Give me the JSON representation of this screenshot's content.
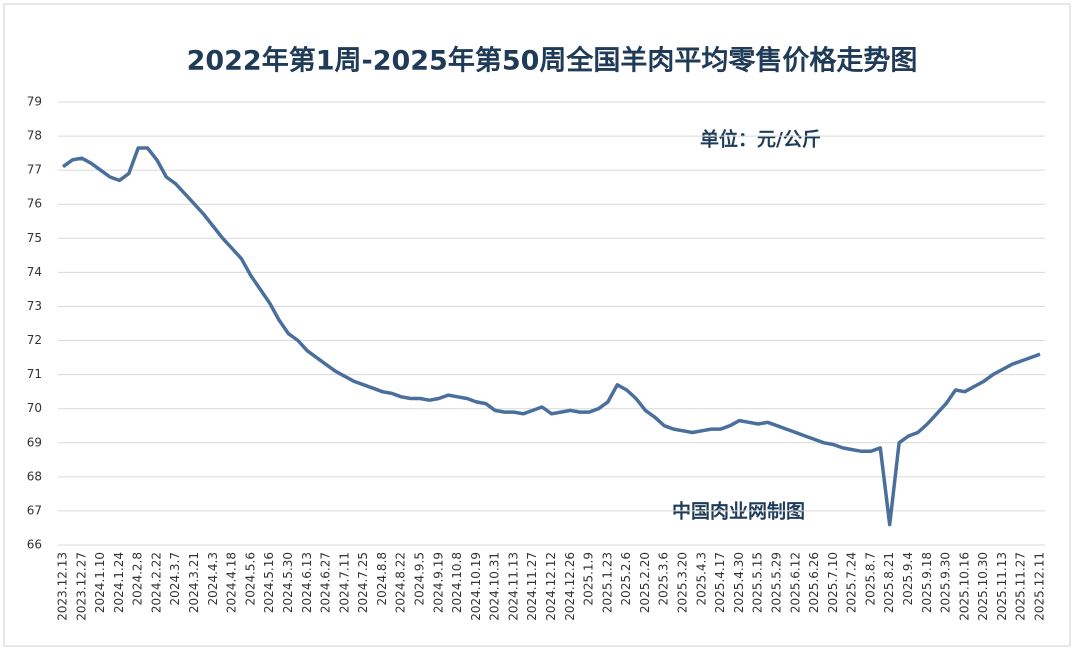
{
  "chart_data": {
    "type": "line",
    "title": "2022年第1周-2025年第50周全国羊肉平均零售价格走势图",
    "annotations": [
      "单位：元/公斤",
      "中国肉业网制图"
    ],
    "categories": [
      "2023.12.13",
      null,
      "2023.12.27",
      null,
      "2024.1.10",
      null,
      "2024.1.24",
      null,
      "2024.2.8",
      null,
      "2024.2.22",
      null,
      "2024.3.7",
      null,
      "2024.3.21",
      null,
      "2024.4.3",
      null,
      "2024.4.18",
      null,
      "2024.5.6",
      null,
      "2024.5.16",
      null,
      "2024.5.30",
      null,
      "2024.6.13",
      null,
      "2024.6.27",
      null,
      "2024.7.11",
      null,
      "2024.7.25",
      null,
      "2024.8.8",
      null,
      "2024.8.22",
      null,
      "2024.9.5",
      null,
      "2024.9.19",
      null,
      "2024.10.8",
      null,
      "2024.10.19",
      null,
      "2024.10.31",
      null,
      "2024.11.13",
      null,
      "2024.11.27",
      null,
      "2024.12.12",
      null,
      "2024.12.26",
      null,
      "2025.1.9",
      null,
      "2025.1.23",
      null,
      "2025.2.6",
      null,
      "2025.2.20",
      null,
      "2025.3.6",
      null,
      "2025.3.20",
      null,
      "2025.4.3",
      null,
      "2025.4.17",
      null,
      "2025.4.30",
      null,
      "2025.5.15",
      null,
      "2025.5.29",
      null,
      "2025.6.12",
      null,
      "2025.6.26",
      null,
      "2025.7.10",
      null,
      "2025.7.24",
      null,
      "2025.8.7",
      null,
      "2025.8.21",
      null,
      "2025.9.4",
      null,
      "2025.9.18",
      null,
      "2025.9.30",
      null,
      "2025.10.16",
      null,
      "2025.10.30",
      null,
      "2025.11.13",
      null,
      "2025.11.27",
      null,
      "2025.12.11"
    ],
    "series": [
      {
        "name": "全国羊肉平均零售价格",
        "color": "#4a6f9c",
        "values": [
          77.1,
          77.3,
          77.35,
          77.2,
          77.0,
          76.8,
          76.7,
          76.9,
          77.65,
          77.65,
          77.3,
          76.8,
          76.6,
          76.3,
          76.0,
          75.7,
          75.35,
          75.0,
          74.7,
          74.4,
          73.9,
          73.5,
          73.1,
          72.6,
          72.2,
          72.0,
          71.7,
          71.5,
          71.3,
          71.1,
          70.95,
          70.8,
          70.7,
          70.6,
          70.5,
          70.45,
          70.35,
          70.3,
          70.3,
          70.25,
          70.3,
          70.4,
          70.35,
          70.3,
          70.2,
          70.15,
          69.95,
          69.9,
          69.9,
          69.85,
          69.95,
          70.05,
          69.85,
          69.9,
          69.95,
          69.9,
          69.9,
          70.0,
          70.2,
          70.7,
          70.55,
          70.3,
          69.95,
          69.75,
          69.5,
          69.4,
          69.35,
          69.3,
          69.35,
          69.4,
          69.4,
          69.5,
          69.65,
          69.6,
          69.55,
          69.6,
          69.5,
          69.4,
          69.3,
          69.2,
          69.1,
          69.0,
          68.95,
          68.85,
          68.8,
          68.75,
          68.75,
          68.85,
          66.6,
          69.0,
          69.2,
          69.3,
          69.55,
          69.85,
          70.15,
          70.55,
          70.5,
          70.65,
          70.8,
          71.0,
          71.15,
          71.3,
          71.4,
          71.5,
          71.6
        ]
      }
    ],
    "ylim": [
      66,
      79
    ],
    "yticks": [
      66,
      67,
      68,
      69,
      70,
      71,
      72,
      73,
      74,
      75,
      76,
      77,
      78,
      79
    ],
    "grid": true
  }
}
